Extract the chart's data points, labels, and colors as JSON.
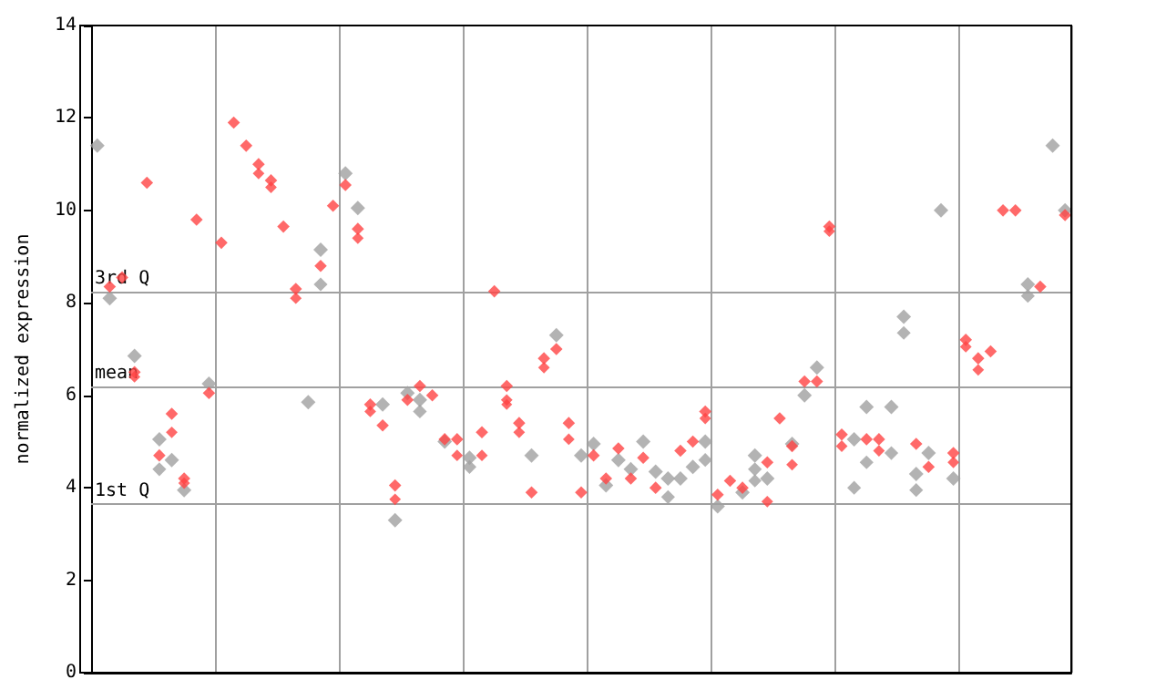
{
  "chart_data": {
    "type": "scatter",
    "ylabel": "normalized expression",
    "categories": [
      null,
      null,
      null,
      null,
      null,
      null,
      null,
      null,
      null,
      null,
      null,
      null,
      null,
      null,
      null,
      null,
      null,
      null,
      null,
      null,
      null,
      null,
      null,
      null,
      null,
      null,
      null,
      null,
      null,
      null,
      null,
      null,
      null,
      null,
      null,
      null,
      null,
      null,
      null,
      null,
      null,
      null,
      null,
      null,
      null,
      null,
      null,
      null,
      null,
      null,
      null,
      null,
      null,
      null,
      null,
      null,
      null,
      null,
      null,
      null,
      null,
      null,
      null,
      null,
      null,
      null,
      null,
      null,
      null,
      null,
      null,
      null,
      null,
      null,
      null,
      null,
      null,
      null,
      null
    ],
    "ylim": [
      0,
      14
    ],
    "yticks": [
      0,
      2,
      4,
      6,
      8,
      10,
      12,
      14
    ],
    "grid": "x",
    "tick_labels": "y",
    "marker": "diamond",
    "ref_lines": [
      {
        "axis": "y",
        "value": 8.25,
        "label": "3rd Q",
        "color": "#a0a0a0"
      },
      {
        "axis": "y",
        "value": 6.2,
        "label": "mean",
        "color": "#a0a0a0"
      },
      {
        "axis": "y",
        "value": 3.65,
        "label": "1st Q",
        "color": "#a0a0a0"
      }
    ],
    "series": [
      {
        "color": "#a0a0a0",
        "values": [
          11.4,
          8.1,
          null,
          6.85,
          null,
          5.05,
          4.6,
          3.95,
          null,
          6.25,
          null,
          null,
          null,
          null,
          null,
          null,
          null,
          5.85,
          9.15,
          null,
          10.8,
          10.05,
          null,
          5.8,
          3.3,
          6.05,
          5.9,
          null,
          5.0,
          null,
          4.65,
          null,
          null,
          null,
          null,
          4.7,
          null,
          7.3,
          null,
          4.7,
          4.95,
          4.05,
          4.6,
          4.4,
          5.0,
          4.35,
          4.2,
          4.2,
          4.45,
          5.0,
          3.6,
          null,
          3.9,
          4.7,
          4.2,
          null,
          4.95,
          6.0,
          6.6,
          null,
          null,
          5.05,
          5.75,
          null,
          5.75,
          7.7,
          4.3,
          4.75,
          10.0,
          4.2,
          null,
          null,
          null,
          null,
          null,
          8.4,
          null,
          11.4,
          10.0
        ]
      },
      {
        "color": "#a0a0a0",
        "values": [
          null,
          null,
          null,
          null,
          null,
          4.4,
          null,
          null,
          null,
          null,
          null,
          null,
          null,
          null,
          null,
          null,
          null,
          null,
          8.4,
          null,
          null,
          null,
          null,
          null,
          null,
          null,
          5.65,
          null,
          null,
          null,
          4.45,
          null,
          null,
          null,
          null,
          null,
          null,
          null,
          null,
          null,
          null,
          null,
          null,
          null,
          null,
          null,
          3.8,
          null,
          null,
          4.6,
          null,
          null,
          null,
          4.4,
          null,
          null,
          null,
          null,
          null,
          null,
          null,
          4.0,
          4.55,
          null,
          4.75,
          7.35,
          3.95,
          null,
          null,
          null,
          null,
          null,
          null,
          null,
          null,
          8.15,
          null,
          null,
          null
        ]
      },
      {
        "color": "#a0a0a0",
        "values": [
          null,
          null,
          null,
          null,
          null,
          null,
          null,
          null,
          null,
          null,
          null,
          null,
          null,
          null,
          null,
          null,
          null,
          null,
          null,
          null,
          null,
          null,
          null,
          null,
          null,
          null,
          null,
          null,
          null,
          null,
          null,
          null,
          null,
          null,
          null,
          null,
          null,
          null,
          null,
          null,
          null,
          null,
          null,
          null,
          null,
          null,
          null,
          null,
          null,
          null,
          null,
          null,
          null,
          4.15,
          null,
          null,
          null,
          null,
          null,
          null,
          null,
          null,
          null,
          null,
          null,
          null,
          null,
          null,
          null,
          null,
          null,
          null,
          null,
          null,
          null,
          null,
          null,
          null,
          null
        ]
      },
      {
        "color": "#ff4444",
        "values": [
          null,
          8.35,
          8.55,
          6.5,
          10.6,
          4.7,
          5.6,
          4.2,
          9.8,
          6.05,
          9.3,
          11.9,
          11.4,
          11.0,
          10.65,
          9.65,
          8.3,
          null,
          8.8,
          10.1,
          10.55,
          9.6,
          5.8,
          5.35,
          4.05,
          5.9,
          6.2,
          6.0,
          5.05,
          5.05,
          null,
          5.2,
          8.25,
          6.2,
          5.4,
          3.9,
          6.8,
          7.0,
          5.4,
          3.9,
          4.7,
          4.2,
          4.85,
          4.2,
          4.65,
          4.0,
          null,
          4.8,
          5.0,
          5.65,
          3.85,
          4.15,
          4.0,
          null,
          4.55,
          5.5,
          4.9,
          6.3,
          6.3,
          9.65,
          5.15,
          null,
          5.05,
          5.05,
          null,
          null,
          4.95,
          4.45,
          null,
          4.75,
          7.2,
          6.8,
          6.95,
          10.0,
          10.0,
          null,
          8.35,
          null,
          9.9
        ]
      },
      {
        "color": "#ff4444",
        "values": [
          null,
          null,
          null,
          6.4,
          null,
          null,
          5.2,
          4.1,
          null,
          null,
          null,
          null,
          null,
          10.8,
          10.5,
          null,
          8.1,
          null,
          null,
          null,
          null,
          9.4,
          5.65,
          null,
          3.75,
          null,
          null,
          null,
          null,
          4.7,
          null,
          4.7,
          null,
          5.9,
          5.2,
          null,
          6.6,
          null,
          5.05,
          null,
          null,
          null,
          null,
          null,
          null,
          null,
          null,
          null,
          null,
          5.5,
          null,
          null,
          null,
          null,
          3.7,
          null,
          4.5,
          null,
          null,
          9.55,
          4.9,
          null,
          null,
          4.8,
          null,
          null,
          null,
          null,
          null,
          4.55,
          7.05,
          6.55,
          null,
          null,
          null,
          null,
          null,
          null,
          null
        ]
      },
      {
        "color": "#ff4444",
        "values": [
          null,
          null,
          null,
          null,
          null,
          null,
          null,
          null,
          null,
          null,
          null,
          null,
          null,
          null,
          null,
          null,
          null,
          null,
          null,
          null,
          null,
          null,
          null,
          null,
          null,
          null,
          null,
          null,
          null,
          null,
          null,
          null,
          null,
          5.8,
          null,
          null,
          null,
          null,
          null,
          null,
          null,
          null,
          null,
          null,
          null,
          null,
          null,
          null,
          null,
          null,
          null,
          null,
          null,
          null,
          null,
          null,
          null,
          null,
          null,
          null,
          null,
          null,
          null,
          null,
          null,
          null,
          null,
          null,
          null,
          null,
          null,
          null,
          null,
          null,
          null,
          null,
          null,
          null,
          null
        ]
      }
    ]
  }
}
